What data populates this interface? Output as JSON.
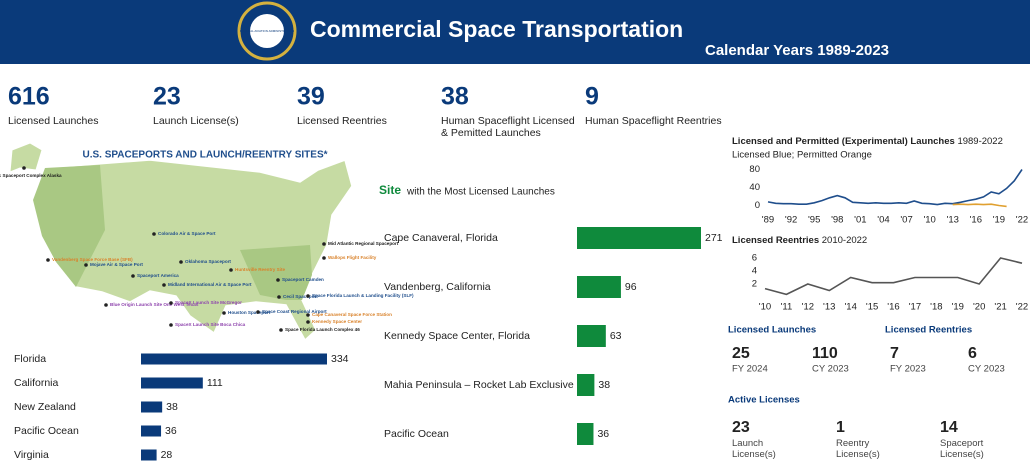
{
  "header": {
    "logo_text": "FEDERAL AVIATION ADMINISTRATION",
    "title": "Commercial Space Transportation",
    "subtitle": "Calendar Years 1989-2023"
  },
  "kpis": [
    {
      "value": "616",
      "label": "Licensed Launches"
    },
    {
      "value": "23",
      "label": "Launch License(s)"
    },
    {
      "value": "39",
      "label": "Licensed Reentries"
    },
    {
      "value": "38",
      "label": "Human Spaceflight Licensed & Pemitted Launches"
    },
    {
      "value": "9",
      "label": "Human Spaceflight Reentries"
    }
  ],
  "map": {
    "title": "U.S. SPACEPORTS AND LAUNCH/REENTRY SITES*",
    "sites": [
      {
        "label": "Pacific Spaceport Complex Alaska",
        "color": "#1a1a1a"
      },
      {
        "label": "Vandenberg Space Force Base (SFB)",
        "color": "#d9822b"
      },
      {
        "label": "Mojave Air & Space Port",
        "color": "#1f4e8c"
      },
      {
        "label": "Spaceport America",
        "color": "#1f4e8c"
      },
      {
        "label": "Colorado Air & Space Port",
        "color": "#1f4e8c"
      },
      {
        "label": "Oklahoma Spaceport",
        "color": "#1f4e8c"
      },
      {
        "label": "Midland International Air & Space Port",
        "color": "#1f4e8c"
      },
      {
        "label": "Blue Origin Launch Site One West Texas",
        "color": "#8e44ad"
      },
      {
        "label": "SpaceX Launch Site McGregor",
        "color": "#8e44ad"
      },
      {
        "label": "SpaceX Launch Site Boca Chica",
        "color": "#8e44ad"
      },
      {
        "label": "Houston Spaceport",
        "color": "#1f4e8c"
      },
      {
        "label": "Huntsville Reentry Site",
        "color": "#d9822b"
      },
      {
        "label": "Cecil Spaceport",
        "color": "#1f4e8c"
      },
      {
        "label": "Spaceport Camden",
        "color": "#1f4e8c"
      },
      {
        "label": "Mid Atlantic Regional Spaceport",
        "color": "#1a1a1a"
      },
      {
        "label": "Wallops Flight Facility",
        "color": "#d9822b"
      },
      {
        "label": "Space Florida Launch & Landing Facility (SLF)",
        "color": "#1f4e8c"
      },
      {
        "label": "Space Coast Regional Airport",
        "color": "#1f4e8c"
      },
      {
        "label": "Cape Canaveral Space Force Station",
        "color": "#d9822b"
      },
      {
        "label": "Kennedy Space Center",
        "color": "#d9822b"
      },
      {
        "label": "Space Florida Launch Complex 46",
        "color": "#1a1a1a"
      }
    ]
  },
  "chart_data": [
    {
      "type": "bar",
      "categories": [
        "Florida",
        "California",
        "New Zealand",
        "Pacific Ocean",
        "Virginia"
      ],
      "values": [
        334,
        111,
        38,
        36,
        28
      ],
      "color": "#0a3a7a"
    },
    {
      "type": "bar",
      "title_emphasis": "Site",
      "title": "with the Most Licensed Launches",
      "categories": [
        "Cape Canaveral, Florida",
        "Vandenberg, California",
        "Kennedy Space Center, Florida",
        "Mahia Peninsula – Rocket Lab Exclusive",
        "Pacific Ocean"
      ],
      "values": [
        271,
        96,
        63,
        38,
        36
      ],
      "color": "#0f8a3c"
    },
    {
      "type": "line",
      "title": "Licensed and Permitted (Experimental) Launches",
      "title_suffix": "1989-2022",
      "subtitle": "Licensed Blue; Permitted Orange",
      "x": [
        1989,
        1990,
        1991,
        1992,
        1993,
        1994,
        1995,
        1996,
        1997,
        1998,
        1999,
        2000,
        2001,
        2002,
        2003,
        2004,
        2005,
        2006,
        2007,
        2008,
        2009,
        2010,
        2011,
        2012,
        2013,
        2014,
        2015,
        2016,
        2017,
        2018,
        2019,
        2020,
        2021,
        2022
      ],
      "series": [
        {
          "name": "Licensed",
          "color": "#1f4e8c",
          "values": [
            8,
            5,
            4,
            4,
            3,
            3,
            6,
            11,
            17,
            22,
            17,
            7,
            6,
            5,
            6,
            5,
            5,
            6,
            5,
            10,
            5,
            4,
            2,
            5,
            4,
            7,
            11,
            14,
            19,
            30,
            26,
            38,
            55,
            80
          ]
        },
        {
          "name": "Permitted",
          "color": "#e0a030",
          "values": [
            null,
            null,
            null,
            null,
            null,
            null,
            null,
            null,
            null,
            null,
            null,
            null,
            null,
            null,
            null,
            null,
            null,
            null,
            null,
            null,
            null,
            null,
            null,
            null,
            2,
            3,
            2,
            3,
            2,
            3,
            0,
            -2,
            null,
            null
          ]
        }
      ],
      "xlim": [
        1989,
        2022
      ],
      "xticks": [
        {
          "value": 1989,
          "label": "'89"
        },
        {
          "value": 1992,
          "label": "'92"
        },
        {
          "value": 1995,
          "label": "'95"
        },
        {
          "value": 1998,
          "label": "'98"
        },
        {
          "value": 2001,
          "label": "'01"
        },
        {
          "value": 2004,
          "label": "'04"
        },
        {
          "value": 2007,
          "label": "'07"
        },
        {
          "value": 2010,
          "label": "'10"
        },
        {
          "value": 2013,
          "label": "'13"
        },
        {
          "value": 2016,
          "label": "'16"
        },
        {
          "value": 2019,
          "label": "'19"
        },
        {
          "value": 2022,
          "label": "'22"
        }
      ],
      "ylim": [
        -10,
        90
      ],
      "yticks": [
        0,
        40,
        80
      ]
    },
    {
      "type": "line",
      "title": "Licensed Reentries",
      "title_suffix": "2010-2022",
      "x": [
        2010,
        2011,
        2012,
        2013,
        2014,
        2015,
        2016,
        2017,
        2018,
        2019,
        2020,
        2021,
        2022
      ],
      "series": [
        {
          "name": "Licensed Reentries",
          "color": "#555555",
          "values": [
            1.3,
            0.4,
            2,
            1,
            3,
            2.2,
            2.2,
            3,
            3,
            3,
            2,
            6,
            5.2
          ]
        }
      ],
      "xlim": [
        2010,
        2022
      ],
      "xticks": [
        {
          "value": 2010,
          "label": "'10"
        },
        {
          "value": 2011,
          "label": "'11"
        },
        {
          "value": 2012,
          "label": "'12"
        },
        {
          "value": 2013,
          "label": "'13"
        },
        {
          "value": 2014,
          "label": "'14"
        },
        {
          "value": 2015,
          "label": "'15"
        },
        {
          "value": 2016,
          "label": "'16"
        },
        {
          "value": 2017,
          "label": "'17"
        },
        {
          "value": 2018,
          "label": "'18"
        },
        {
          "value": 2019,
          "label": "'19"
        },
        {
          "value": 2020,
          "label": "'20"
        },
        {
          "value": 2021,
          "label": "'21"
        },
        {
          "value": 2022,
          "label": "'22"
        }
      ],
      "ylim": [
        0,
        7
      ],
      "yticks": [
        2,
        4,
        6
      ]
    }
  ],
  "stats": {
    "launches": {
      "title": "Licensed Launches",
      "items": [
        {
          "value": "25",
          "label": "FY 2024"
        },
        {
          "value": "110",
          "label": "CY 2023"
        }
      ]
    },
    "reentries": {
      "title": "Licensed Reentries",
      "items": [
        {
          "value": "7",
          "label": "FY 2023"
        },
        {
          "value": "6",
          "label": "CY 2023"
        }
      ]
    },
    "active": {
      "title": "Active Licenses",
      "items": [
        {
          "value": "23",
          "label": "Launch License(s)"
        },
        {
          "value": "1",
          "label": "Reentry License(s)"
        },
        {
          "value": "14",
          "label": "Spaceport License(s)"
        }
      ]
    }
  }
}
